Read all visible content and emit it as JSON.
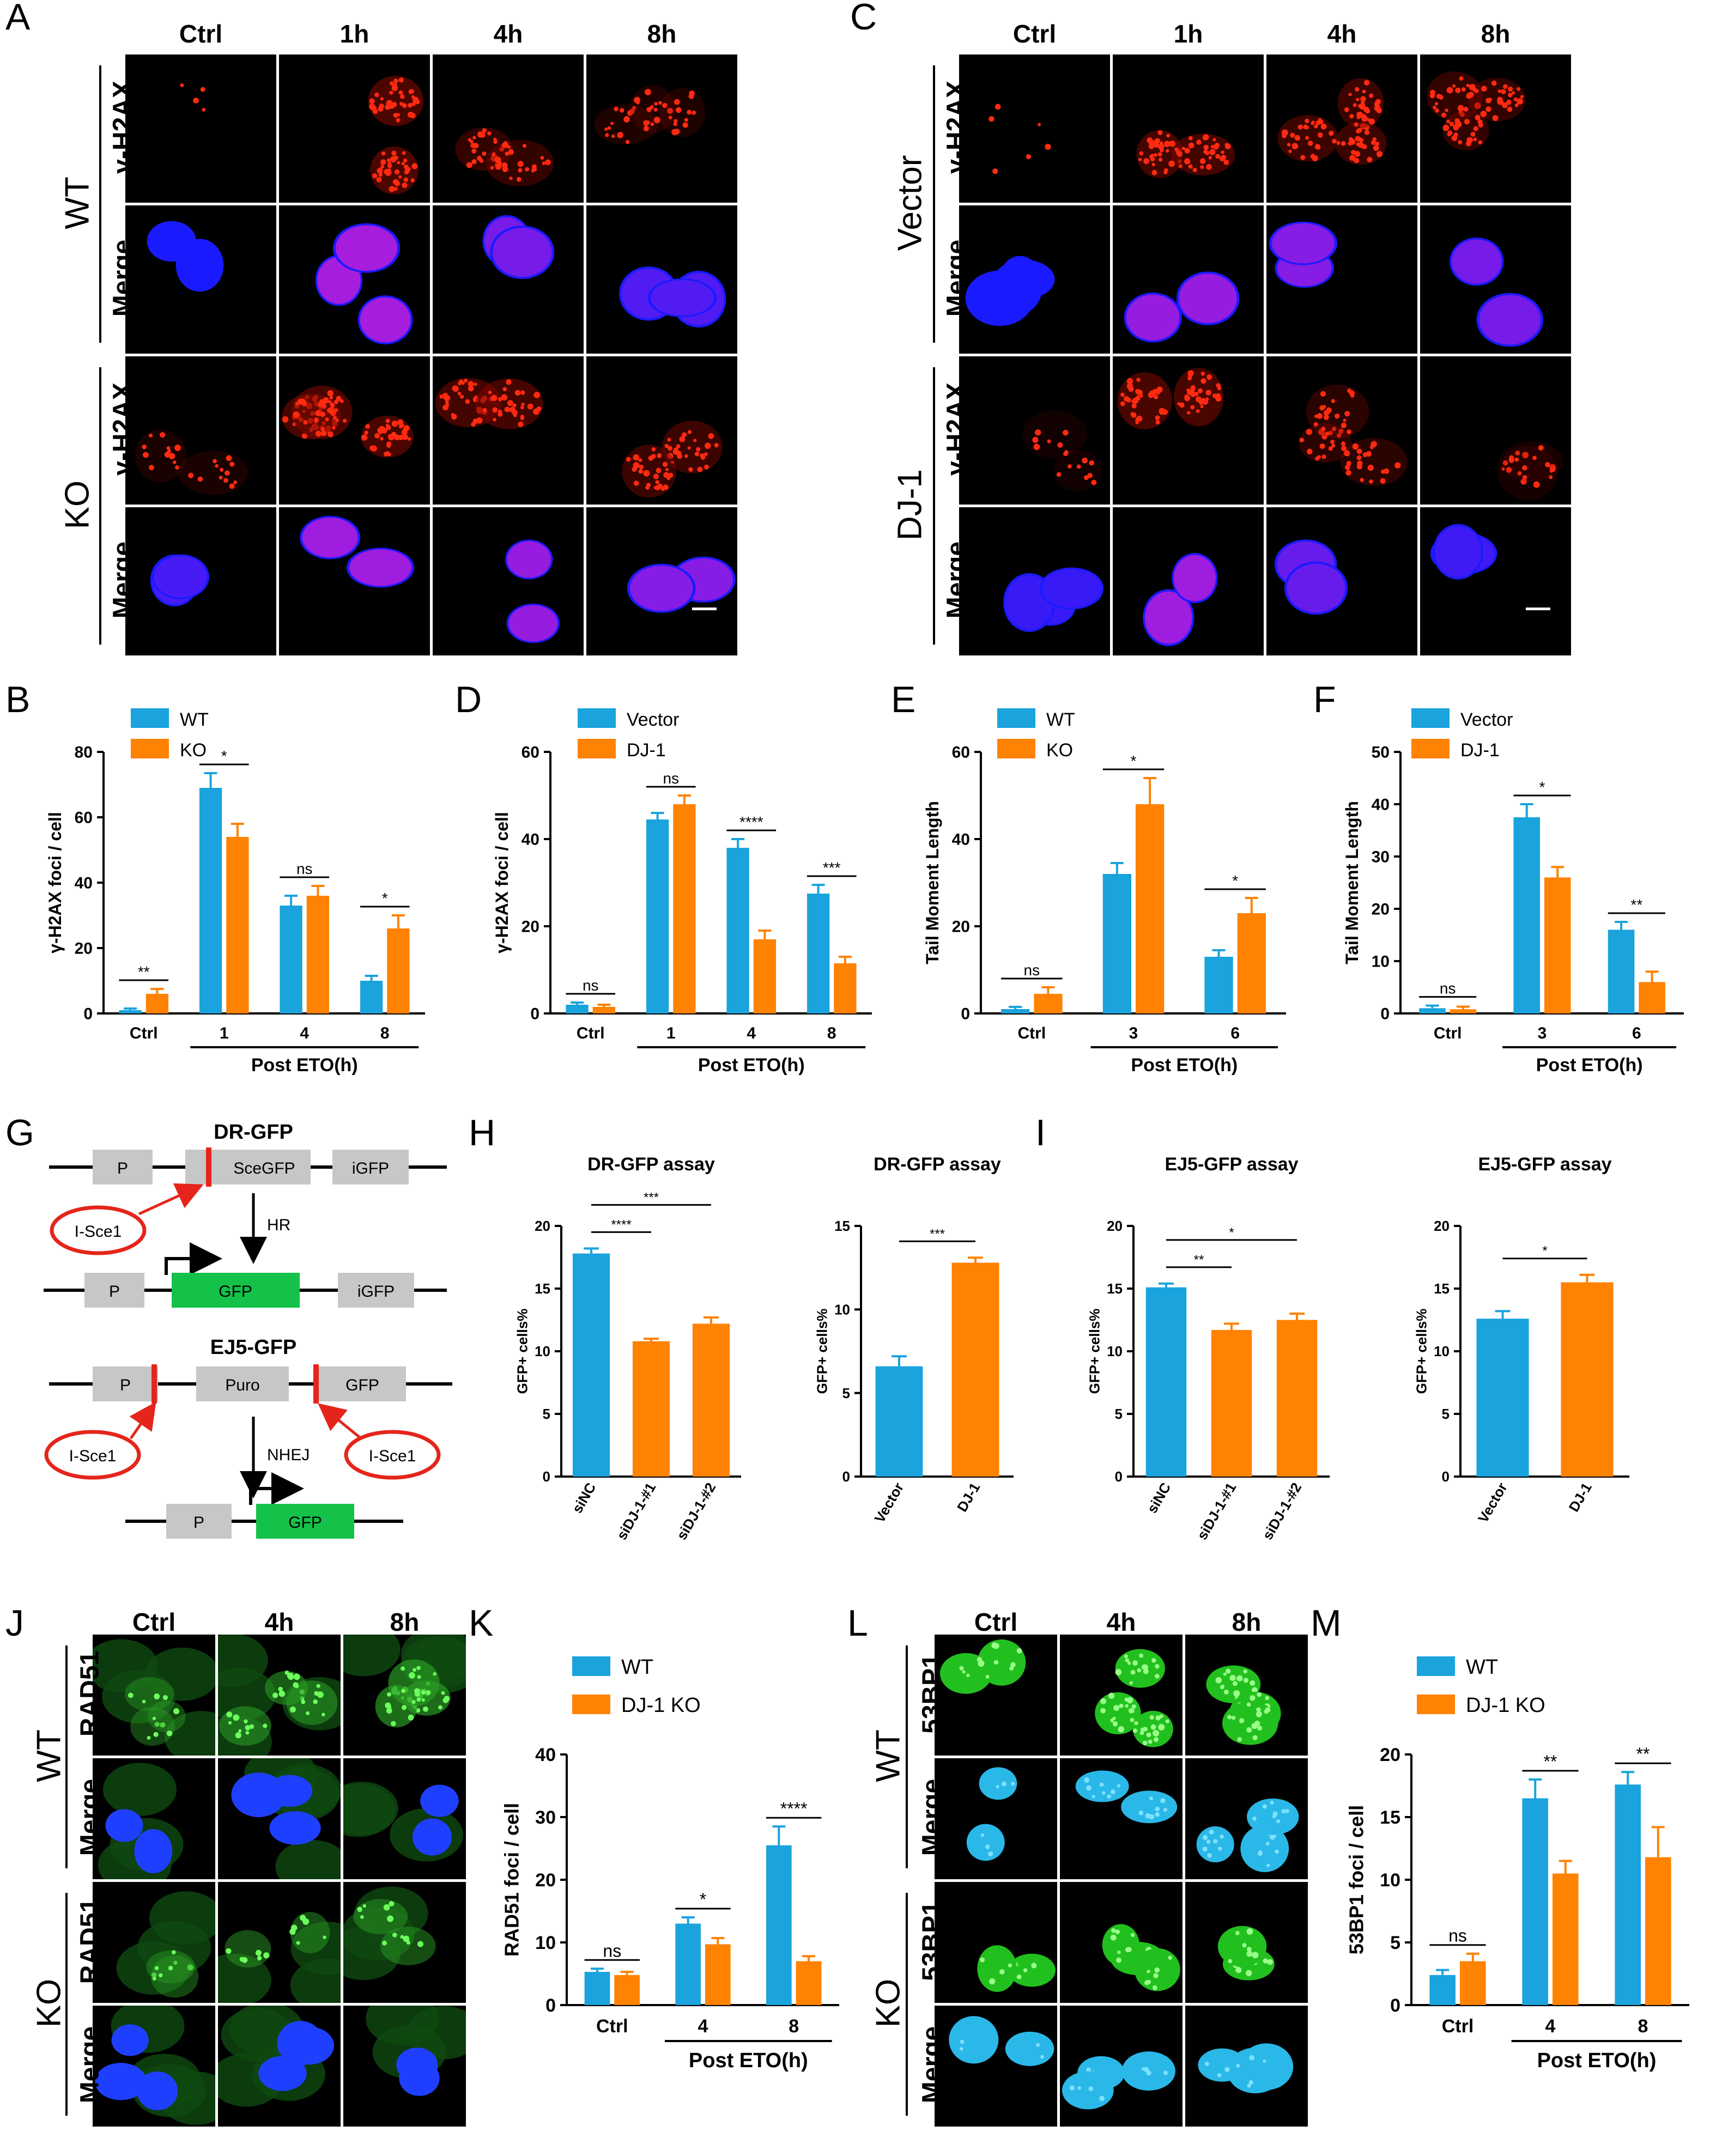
{
  "panel_letters": {
    "A": "A",
    "B": "B",
    "C": "C",
    "D": "D",
    "E": "E",
    "F": "F",
    "G": "G",
    "H": "H",
    "I": "I",
    "J": "J",
    "K": "K",
    "L": "L",
    "M": "M"
  },
  "A": {
    "columns": [
      "Ctrl",
      "1h",
      "4h",
      "8h"
    ],
    "groups": [
      "WT",
      "KO"
    ],
    "rows": [
      "γ-H2AX",
      "Merge",
      "γ-H2AX",
      "Merge"
    ]
  },
  "C": {
    "columns": [
      "Ctrl",
      "1h",
      "4h",
      "8h"
    ],
    "groups": [
      "Vector",
      "DJ-1"
    ],
    "rows": [
      "γ-H2AX",
      "Merge",
      "γ-H2AX",
      "Merge"
    ]
  },
  "J": {
    "columns": [
      "Ctrl",
      "4h",
      "8h"
    ],
    "groups": [
      "WT",
      "KO"
    ],
    "rows": [
      "RAD51",
      "Merge",
      "RAD51",
      "Merge"
    ]
  },
  "L": {
    "columns": [
      "Ctrl",
      "4h",
      "8h"
    ],
    "groups": [
      "WT",
      "KO"
    ],
    "rows": [
      "53BP1",
      "Merge",
      "53BP1",
      "Merge"
    ]
  },
  "G": {
    "dr_title": "DR-GFP",
    "ej5_title": "EJ5-GFP",
    "p": "P",
    "scegfp": "SceGFP",
    "igfp": "iGFP",
    "gfp": "GFP",
    "puro": "Puro",
    "isce": "I-Sce1",
    "hr": "HR",
    "nhej": "NHEJ"
  },
  "colors": {
    "blue": "#1aa3dc",
    "orange": "#ff8200",
    "red_signal": "#ff2a10",
    "blue_signal": "#1a33ff",
    "green_signal": "#2ec92a",
    "gfp_box": "#14c24a"
  },
  "chart_data": [
    {
      "id": "B",
      "type": "bar",
      "ylabel": "γ-H2AX foci / cell",
      "ylim": [
        0,
        80
      ],
      "yticks": [
        0,
        20,
        40,
        60,
        80
      ],
      "categories": [
        "Ctrl",
        "1",
        "4",
        "8"
      ],
      "xgroup_label": "Post ETO(h)",
      "series": [
        {
          "name": "WT",
          "values": [
            1,
            69,
            33,
            10
          ],
          "errors": [
            0.5,
            4.5,
            3,
            1.5
          ]
        },
        {
          "name": "KO",
          "values": [
            6,
            54,
            36,
            26
          ],
          "errors": [
            1.5,
            4,
            3,
            4
          ]
        }
      ],
      "sig": [
        "**",
        "*",
        "ns",
        "*"
      ]
    },
    {
      "id": "D",
      "type": "bar",
      "ylabel": "γ-H2AX foci / cell",
      "ylim": [
        0,
        60
      ],
      "yticks": [
        0,
        20,
        40,
        60
      ],
      "categories": [
        "Ctrl",
        "1",
        "4",
        "8"
      ],
      "xgroup_label": "Post ETO(h)",
      "series": [
        {
          "name": "Vector",
          "values": [
            2,
            44.5,
            38,
            27.5
          ],
          "errors": [
            0.5,
            1.5,
            2,
            2
          ]
        },
        {
          "name": "DJ-1",
          "values": [
            1.5,
            48,
            17,
            11.5
          ],
          "errors": [
            0.5,
            2,
            2,
            1.5
          ]
        }
      ],
      "sig": [
        "ns",
        "ns",
        "****",
        "***"
      ]
    },
    {
      "id": "E",
      "type": "bar",
      "ylabel": "Tail Moment Length",
      "ylim": [
        0,
        60
      ],
      "yticks": [
        0,
        20,
        40,
        60
      ],
      "categories": [
        "Ctrl",
        "3",
        "6"
      ],
      "xgroup_label": "Post ETO(h)",
      "series": [
        {
          "name": "WT",
          "values": [
            1,
            32,
            13
          ],
          "errors": [
            0.5,
            2.5,
            1.5
          ]
        },
        {
          "name": "KO",
          "values": [
            4.5,
            48,
            23
          ],
          "errors": [
            1.5,
            6,
            3.5
          ]
        }
      ],
      "sig": [
        "ns",
        "*",
        "*"
      ]
    },
    {
      "id": "F",
      "type": "bar",
      "ylabel": "Tail Moment Length",
      "ylim": [
        0,
        50
      ],
      "yticks": [
        0,
        10,
        20,
        30,
        40,
        50
      ],
      "categories": [
        "Ctrl",
        "3",
        "6"
      ],
      "xgroup_label": "Post ETO(h)",
      "series": [
        {
          "name": "Vector",
          "values": [
            1,
            37.5,
            16
          ],
          "errors": [
            0.5,
            2.5,
            1.5
          ]
        },
        {
          "name": "DJ-1",
          "values": [
            0.8,
            26,
            6
          ],
          "errors": [
            0.5,
            2,
            2
          ]
        }
      ],
      "sig": [
        "ns",
        "*",
        "**"
      ]
    },
    {
      "id": "H1",
      "type": "bar",
      "title": "DR-GFP assay",
      "ylabel": "GFP+ cells%",
      "ylim": [
        0,
        20
      ],
      "yticks": [
        0,
        5,
        10,
        15,
        20
      ],
      "categories": [
        "siNC",
        "siDJ-1-#1",
        "siDJ-1-#2"
      ],
      "values": [
        17.8,
        10.8,
        12.2
      ],
      "errors": [
        0.4,
        0.2,
        0.5
      ],
      "colors": [
        "blue",
        "orange",
        "orange"
      ],
      "sig": [
        {
          "from": 0,
          "to": 1,
          "label": "****"
        },
        {
          "from": 0,
          "to": 2,
          "label": "***"
        }
      ]
    },
    {
      "id": "H2",
      "type": "bar",
      "title": "DR-GFP assay",
      "ylabel": "GFP+ cells%",
      "ylim": [
        0,
        15
      ],
      "yticks": [
        0,
        5,
        10,
        15
      ],
      "categories": [
        "Vector",
        "DJ-1"
      ],
      "values": [
        6.6,
        12.8
      ],
      "errors": [
        0.6,
        0.3
      ],
      "colors": [
        "blue",
        "orange"
      ],
      "sig": [
        {
          "from": 0,
          "to": 1,
          "label": "***"
        }
      ]
    },
    {
      "id": "I1",
      "type": "bar",
      "title": "EJ5-GFP assay",
      "ylabel": "GFP+ cells%",
      "ylim": [
        0,
        20
      ],
      "yticks": [
        0,
        5,
        10,
        15,
        20
      ],
      "categories": [
        "siNC",
        "siDJ-1-#1",
        "siDJ-1-#2"
      ],
      "values": [
        15.1,
        11.7,
        12.5
      ],
      "errors": [
        0.3,
        0.5,
        0.5
      ],
      "colors": [
        "blue",
        "orange",
        "orange"
      ],
      "sig": [
        {
          "from": 0,
          "to": 1,
          "label": "**"
        },
        {
          "from": 0,
          "to": 2,
          "label": "*"
        }
      ]
    },
    {
      "id": "I2",
      "type": "bar",
      "title": "EJ5-GFP assay",
      "ylabel": "GFP+ cells%",
      "ylim": [
        0,
        20
      ],
      "yticks": [
        0,
        5,
        10,
        15,
        20
      ],
      "categories": [
        "Vector",
        "DJ-1"
      ],
      "values": [
        12.6,
        15.5
      ],
      "errors": [
        0.6,
        0.6
      ],
      "colors": [
        "blue",
        "orange"
      ],
      "sig": [
        {
          "from": 0,
          "to": 1,
          "label": "*"
        }
      ]
    },
    {
      "id": "K",
      "type": "bar",
      "ylabel": "RAD51 foci / cell",
      "ylim": [
        0,
        40
      ],
      "yticks": [
        0,
        10,
        20,
        30,
        40
      ],
      "categories": [
        "Ctrl",
        "4",
        "8"
      ],
      "xgroup_label": "Post ETO(h)",
      "series": [
        {
          "name": "WT",
          "values": [
            5.3,
            13,
            25.5
          ],
          "errors": [
            0.5,
            1,
            3
          ]
        },
        {
          "name": "DJ-1 KO",
          "values": [
            4.8,
            9.7,
            7
          ],
          "errors": [
            0.5,
            1,
            0.8
          ]
        }
      ],
      "sig": [
        "ns",
        "*",
        "****"
      ]
    },
    {
      "id": "M",
      "type": "bar",
      "ylabel": "53BP1 foci / cell",
      "ylim": [
        0,
        20
      ],
      "yticks": [
        0,
        5,
        10,
        15,
        20
      ],
      "categories": [
        "Ctrl",
        "4",
        "8"
      ],
      "xgroup_label": "Post ETO(h)",
      "series": [
        {
          "name": "WT",
          "values": [
            2.4,
            16.5,
            17.6
          ],
          "errors": [
            0.4,
            1.5,
            1
          ]
        },
        {
          "name": "DJ-1 KO",
          "values": [
            3.5,
            10.5,
            11.8
          ],
          "errors": [
            0.6,
            1,
            2.4
          ]
        }
      ],
      "sig": [
        "ns",
        "**",
        "**"
      ]
    }
  ]
}
